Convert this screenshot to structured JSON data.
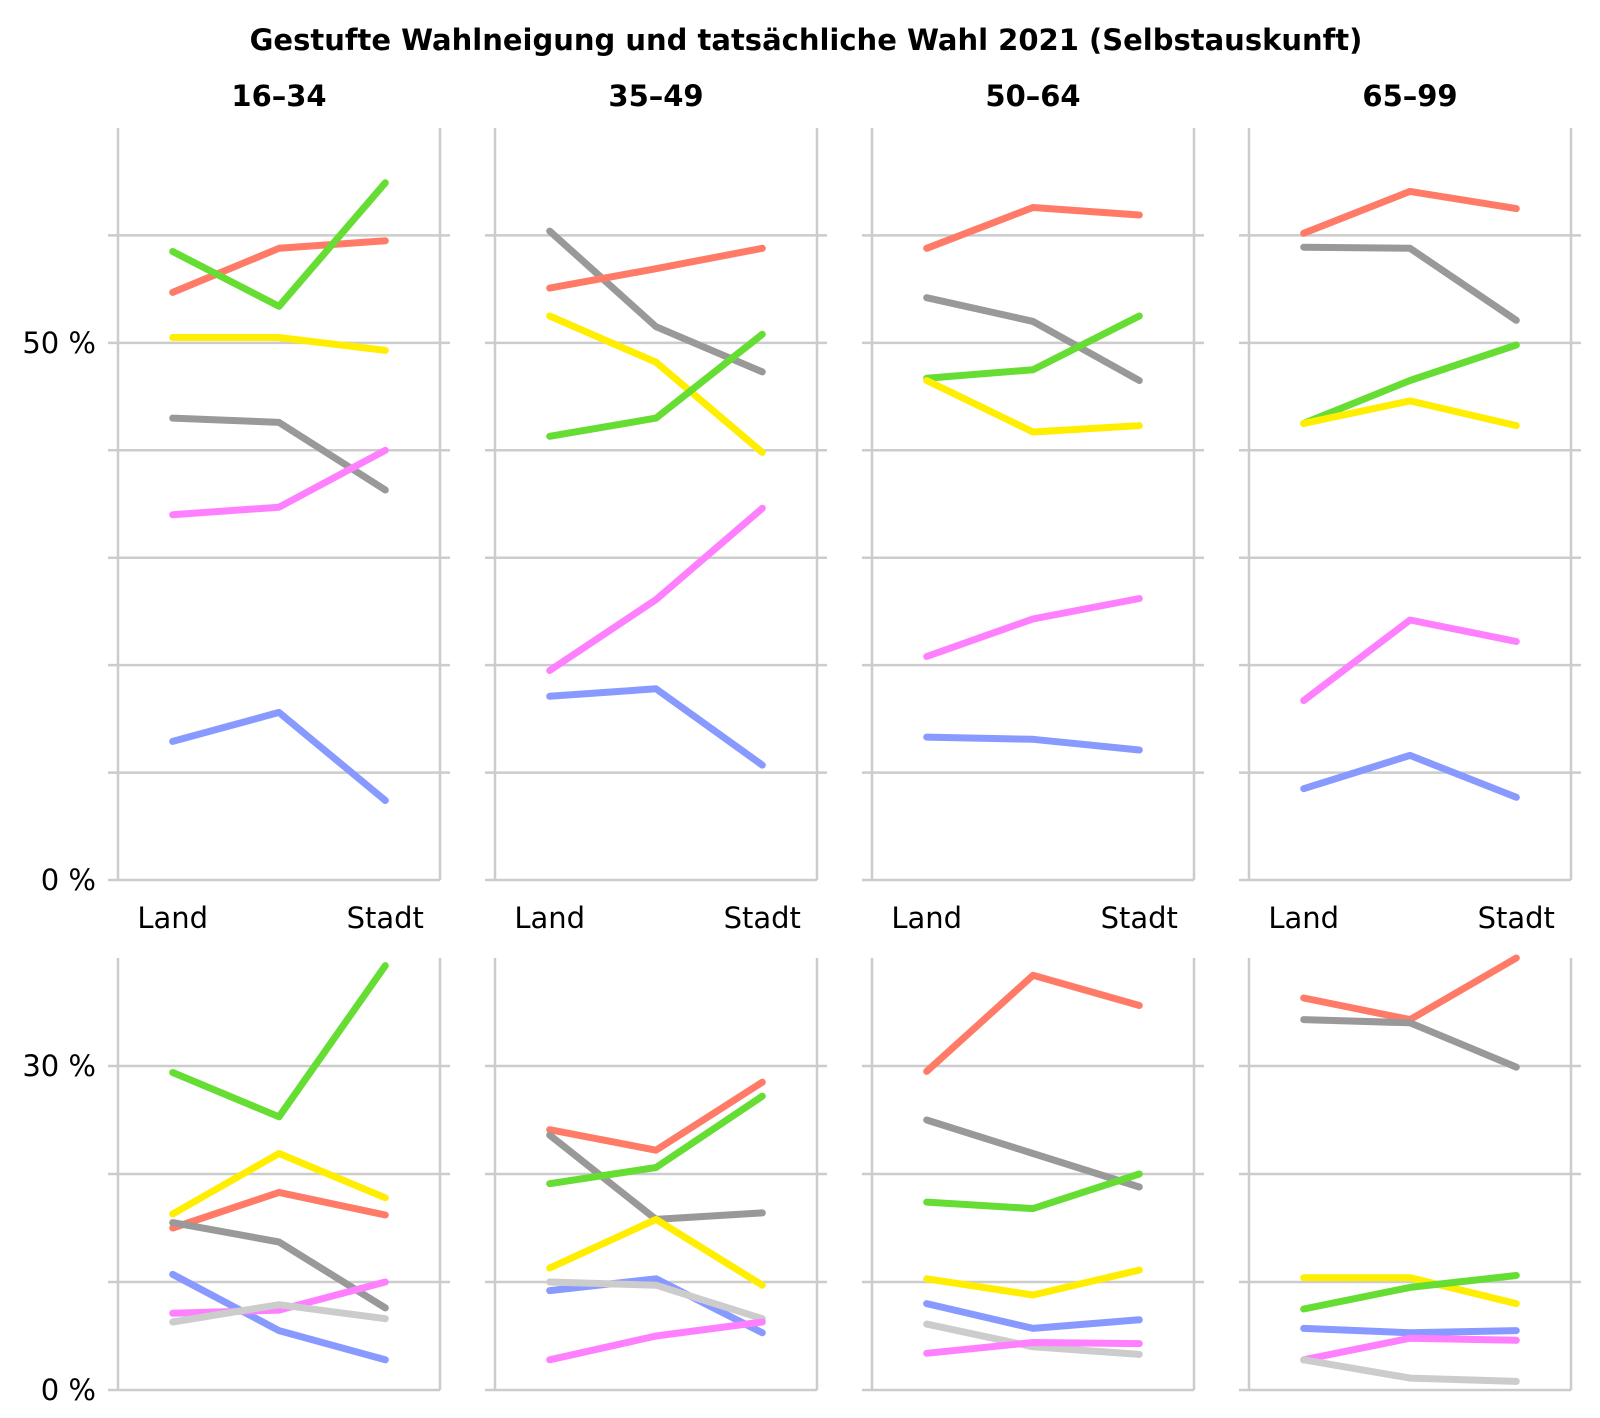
{
  "chart_data": {
    "type": "line",
    "title": "Gestufte Wahlneigung und tatsächliche Wahl 2021 (Selbstauskunft)",
    "columns": [
      "16–34",
      "35–49",
      "50–64",
      "65–99"
    ],
    "x": [
      "Land",
      "",
      "Stadt"
    ],
    "x_tick_labels": [
      "Land",
      "Stadt"
    ],
    "colors": [
      "#ff7b67",
      "#999999",
      "#66dd33",
      "#ffee00",
      "#ff80ff",
      "#8899ff",
      "#cccccc"
    ],
    "top_row": {
      "ylim": [
        0,
        70
      ],
      "y_tick_labels": [
        "0 %",
        "50 %"
      ],
      "gridlines": [
        10,
        20,
        30,
        40,
        50,
        60
      ],
      "panels": [
        {
          "column": "16–34",
          "series": [
            {
              "color": "#ff7b67",
              "values": [
                54.7,
                58.8,
                59.5
              ]
            },
            {
              "color": "#999999",
              "values": [
                43.0,
                42.6,
                36.3
              ]
            },
            {
              "color": "#66dd33",
              "values": [
                58.5,
                53.4,
                64.9
              ]
            },
            {
              "color": "#ffee00",
              "values": [
                50.5,
                50.5,
                49.3
              ]
            },
            {
              "color": "#ff80ff",
              "values": [
                34.0,
                34.7,
                40.0
              ]
            },
            {
              "color": "#8899ff",
              "values": [
                12.9,
                15.6,
                7.4
              ]
            }
          ]
        },
        {
          "column": "35–49",
          "series": [
            {
              "color": "#999999",
              "values": [
                60.4,
                51.5,
                47.3
              ]
            },
            {
              "color": "#ff7b67",
              "values": [
                55.1,
                56.9,
                58.8
              ]
            },
            {
              "color": "#ffee00",
              "values": [
                52.5,
                48.2,
                39.8
              ]
            },
            {
              "color": "#66dd33",
              "values": [
                41.3,
                43.0,
                50.8
              ]
            },
            {
              "color": "#ff80ff",
              "values": [
                19.5,
                26.1,
                34.6
              ]
            },
            {
              "color": "#8899ff",
              "values": [
                17.1,
                17.8,
                10.7
              ]
            }
          ]
        },
        {
          "column": "50–64",
          "series": [
            {
              "color": "#ff7b67",
              "values": [
                58.8,
                62.6,
                61.9
              ]
            },
            {
              "color": "#999999",
              "values": [
                54.2,
                52.0,
                46.5
              ]
            },
            {
              "color": "#66dd33",
              "values": [
                46.7,
                47.5,
                52.5
              ]
            },
            {
              "color": "#ffee00",
              "values": [
                46.5,
                41.7,
                42.3
              ]
            },
            {
              "color": "#ff80ff",
              "values": [
                20.8,
                24.3,
                26.2
              ]
            },
            {
              "color": "#8899ff",
              "values": [
                13.3,
                13.1,
                12.1
              ]
            }
          ]
        },
        {
          "column": "65–99",
          "series": [
            {
              "color": "#ff7b67",
              "values": [
                60.2,
                64.1,
                62.5
              ]
            },
            {
              "color": "#999999",
              "values": [
                58.9,
                58.8,
                52.1
              ]
            },
            {
              "color": "#66dd33",
              "values": [
                42.5,
                46.5,
                49.8
              ]
            },
            {
              "color": "#ffee00",
              "values": [
                42.5,
                44.6,
                42.3
              ]
            },
            {
              "color": "#ff80ff",
              "values": [
                16.7,
                24.2,
                22.2
              ]
            },
            {
              "color": "#8899ff",
              "values": [
                8.5,
                11.6,
                7.7
              ]
            }
          ]
        }
      ]
    },
    "bottom_row": {
      "ylim": [
        0,
        40
      ],
      "y_tick_labels": [
        "0 %",
        "30 %"
      ],
      "gridlines": [
        10,
        20,
        30
      ],
      "panels": [
        {
          "column": "16–34",
          "series": [
            {
              "color": "#66dd33",
              "values": [
                29.4,
                25.3,
                39.3
              ]
            },
            {
              "color": "#ffee00",
              "values": [
                16.3,
                21.9,
                17.8
              ]
            },
            {
              "color": "#ff7b67",
              "values": [
                15.0,
                18.3,
                16.2
              ]
            },
            {
              "color": "#999999",
              "values": [
                15.5,
                13.7,
                7.6
              ]
            },
            {
              "color": "#8899ff",
              "values": [
                10.7,
                5.5,
                2.8
              ]
            },
            {
              "color": "#ff80ff",
              "values": [
                7.1,
                7.4,
                10.0
              ]
            },
            {
              "color": "#cccccc",
              "values": [
                6.3,
                7.9,
                6.6
              ]
            }
          ]
        },
        {
          "column": "35–49",
          "series": [
            {
              "color": "#ff7b67",
              "values": [
                24.1,
                22.2,
                28.5
              ]
            },
            {
              "color": "#999999",
              "values": [
                23.6,
                15.8,
                16.4
              ]
            },
            {
              "color": "#66dd33",
              "values": [
                19.1,
                20.6,
                27.2
              ]
            },
            {
              "color": "#ffee00",
              "values": [
                11.3,
                15.8,
                9.7
              ]
            },
            {
              "color": "#8899ff",
              "values": [
                9.2,
                10.3,
                5.3
              ]
            },
            {
              "color": "#cccccc",
              "values": [
                10.0,
                9.7,
                6.6
              ]
            },
            {
              "color": "#ff80ff",
              "values": [
                2.8,
                5.0,
                6.3
              ]
            }
          ]
        },
        {
          "column": "50–64",
          "series": [
            {
              "color": "#ff7b67",
              "values": [
                29.5,
                38.4,
                35.6
              ]
            },
            {
              "color": "#999999",
              "values": [
                25.0,
                21.9,
                18.8
              ]
            },
            {
              "color": "#66dd33",
              "values": [
                17.4,
                16.8,
                20.0
              ]
            },
            {
              "color": "#ffee00",
              "values": [
                10.3,
                8.8,
                11.1
              ]
            },
            {
              "color": "#8899ff",
              "values": [
                8.0,
                5.7,
                6.5
              ]
            },
            {
              "color": "#cccccc",
              "values": [
                6.1,
                4.0,
                3.3
              ]
            },
            {
              "color": "#ff80ff",
              "values": [
                3.4,
                4.4,
                4.3
              ]
            }
          ]
        },
        {
          "column": "65–99",
          "series": [
            {
              "color": "#ff7b67",
              "values": [
                36.3,
                34.3,
                40.0
              ]
            },
            {
              "color": "#999999",
              "values": [
                34.3,
                34.0,
                29.9
              ]
            },
            {
              "color": "#ffee00",
              "values": [
                10.4,
                10.4,
                8.0
              ]
            },
            {
              "color": "#66dd33",
              "values": [
                7.5,
                9.5,
                10.6
              ]
            },
            {
              "color": "#8899ff",
              "values": [
                5.7,
                5.3,
                5.5
              ]
            },
            {
              "color": "#ff80ff",
              "values": [
                2.8,
                4.8,
                4.6
              ]
            },
            {
              "color": "#cccccc",
              "values": [
                2.8,
                1.1,
                0.8
              ]
            }
          ]
        }
      ]
    }
  }
}
